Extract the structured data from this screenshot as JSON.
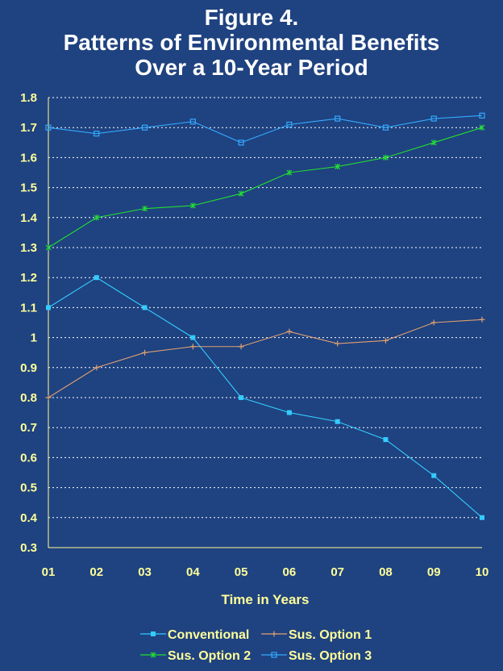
{
  "title_lines": [
    "Figure 4.",
    "Patterns of Environmental  Benefits",
    "Over a 10-Year Period"
  ],
  "colors": {
    "background": "#1f4280",
    "text": "#ffff99",
    "gridline": "#ffffff"
  },
  "chart_data": {
    "type": "line",
    "title": "Figure 4. Patterns of Environmental  Benefits Over a 10-Year Period",
    "xlabel": "Time in Years",
    "ylabel": "",
    "categories": [
      "01",
      "02",
      "03",
      "04",
      "05",
      "06",
      "07",
      "08",
      "09",
      "10"
    ],
    "ylim": [
      0.3,
      1.8
    ],
    "yticks": [
      "0.3",
      "0.4",
      "0.5",
      "0.6",
      "0.7",
      "0.8",
      "0.9",
      "1",
      "1.1",
      "1.2",
      "1.3",
      "1.4",
      "1.5",
      "1.6",
      "1.7",
      "1.8"
    ],
    "grid": "horizontal dotted",
    "legend_position": "bottom",
    "series": [
      {
        "name": "Conventional",
        "color": "#33ccff",
        "marker": "filled-square",
        "values": [
          1.1,
          1.2,
          1.1,
          1.0,
          0.8,
          0.75,
          0.72,
          0.66,
          0.54,
          0.4
        ]
      },
      {
        "name": "Sus. Option 1",
        "color": "#e0a070",
        "marker": "plus",
        "values": [
          0.8,
          0.9,
          0.95,
          0.97,
          0.97,
          1.02,
          0.98,
          0.99,
          1.05,
          1.06
        ]
      },
      {
        "name": "Sus. Option 2",
        "color": "#22dd33",
        "marker": "star",
        "values": [
          1.3,
          1.4,
          1.43,
          1.44,
          1.48,
          1.55,
          1.57,
          1.6,
          1.65,
          1.7
        ]
      },
      {
        "name": "Sus. Option 3",
        "color": "#33aaff",
        "marker": "open-square",
        "values": [
          1.7,
          1.68,
          1.7,
          1.72,
          1.65,
          1.71,
          1.73,
          1.7,
          1.73,
          1.74
        ]
      }
    ]
  }
}
